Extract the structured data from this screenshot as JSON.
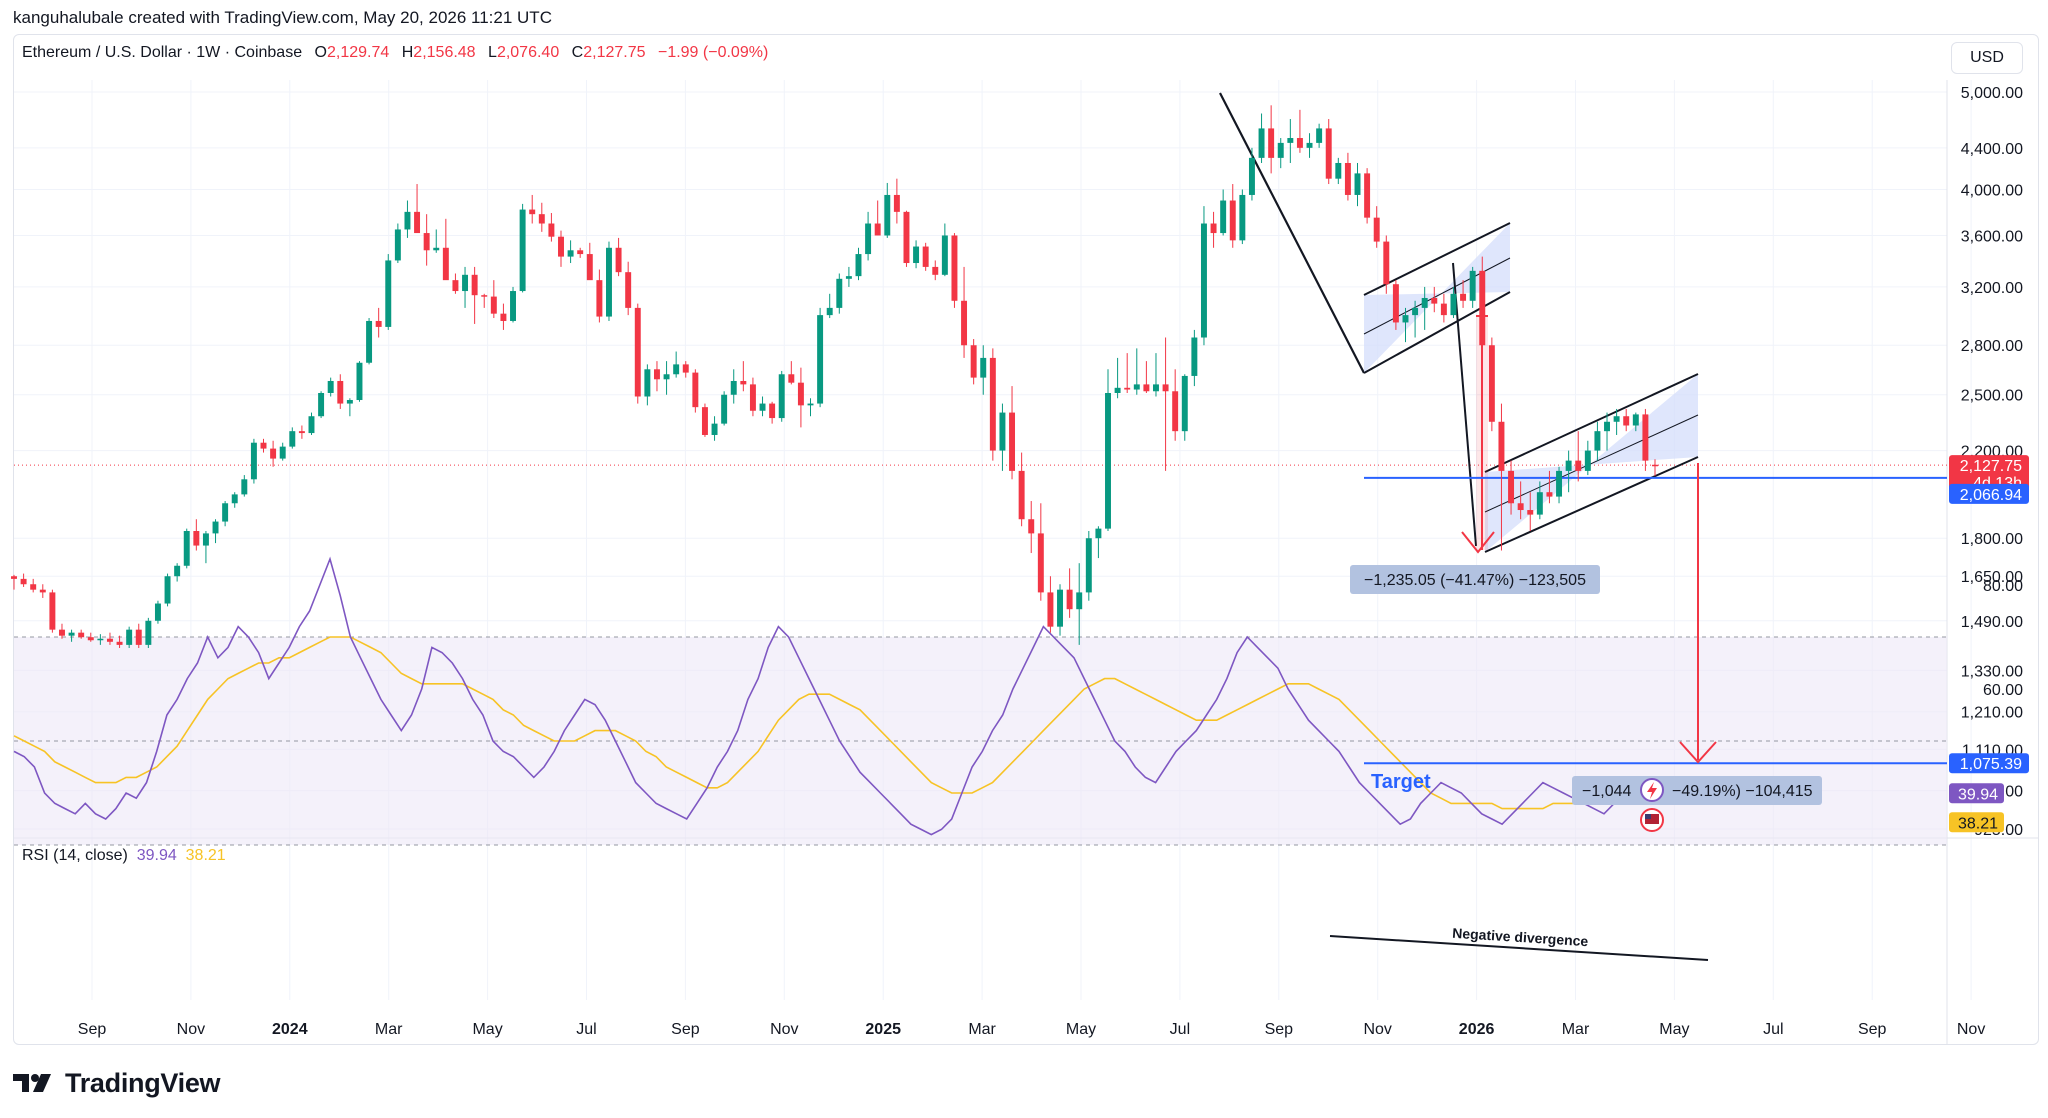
{
  "header": {
    "attribution": "kanguhalubale created with TradingView.com, May 20, 2026 11:21 UTC",
    "symbol": "Ethereum / U.S. Dollar · 1W · Coinbase",
    "open_label": "O",
    "open_value": "2,129.74",
    "high_label": "H",
    "high_value": "2,156.48",
    "low_label": "L",
    "low_value": "2,076.40",
    "close_label": "C",
    "close_value": "2,127.75",
    "change": "−1.99 (−0.09%)",
    "currency_button": "USD"
  },
  "rsi_legend": {
    "name": "RSI (14, close)",
    "rsi_value": "39.94",
    "ma_value": "38.21"
  },
  "branding": {
    "name": "TradingView"
  },
  "annotations": {
    "measure_1": "−1,235.05 (−41.47%) −123,505",
    "measure_2_left": "−1,044",
    "measure_2_right": "−49.19%) −104,415",
    "target_label": "Target",
    "divergence_label": "Negative divergence"
  },
  "price_badges": {
    "last": "2,127.75",
    "countdown": "4d 13h",
    "support": "2,066.94",
    "target": "1,075.39"
  },
  "colors": {
    "up": "#089981",
    "down": "#f23645",
    "level": "#2962ff",
    "rsi": "#7e57c2",
    "rsi_ma": "#f7c325",
    "channel_fill": "#d1dcfb"
  },
  "chart_data": {
    "type": "candlestick",
    "price_axis": {
      "scale": "log",
      "ticks": [
        "5,000.00",
        "4,400.00",
        "4,000.00",
        "3,600.00",
        "3,200.00",
        "2,800.00",
        "2,500.00",
        "2,200.00",
        "1,800.00",
        "1,650.00",
        "1,490.00",
        "1,330.00",
        "1,210.00",
        "1,110.00",
        "1,010.00",
        "925.00"
      ]
    },
    "time_axis": {
      "ticks": [
        "Sep",
        "Nov",
        "2024",
        "Mar",
        "May",
        "Jul",
        "Sep",
        "Nov",
        "2025",
        "Mar",
        "May",
        "Jul",
        "Sep",
        "Nov",
        "2026",
        "Mar",
        "May",
        "Jul",
        "Sep",
        "Nov"
      ]
    },
    "rsi_axis": {
      "ticks": [
        "80.00",
        "60.00"
      ],
      "overbought": 70,
      "oversold": 30,
      "midline": 50
    },
    "levels": {
      "support": 2066.94,
      "target": 1075.39
    },
    "candles_approx": [
      [
        1650,
        1655,
        1600,
        1640
      ],
      [
        1640,
        1660,
        1610,
        1620
      ],
      [
        1620,
        1640,
        1590,
        1600
      ],
      [
        1600,
        1620,
        1570,
        1590
      ],
      [
        1590,
        1600,
        1450,
        1460
      ],
      [
        1460,
        1480,
        1430,
        1440
      ],
      [
        1440,
        1460,
        1420,
        1450
      ],
      [
        1450,
        1460,
        1430,
        1435
      ],
      [
        1435,
        1450,
        1420,
        1425
      ],
      [
        1425,
        1445,
        1410,
        1430
      ],
      [
        1430,
        1450,
        1410,
        1420
      ],
      [
        1420,
        1440,
        1400,
        1410
      ],
      [
        1410,
        1470,
        1400,
        1460
      ],
      [
        1460,
        1480,
        1400,
        1410
      ],
      [
        1410,
        1500,
        1400,
        1490
      ],
      [
        1490,
        1560,
        1480,
        1550
      ],
      [
        1550,
        1660,
        1540,
        1650
      ],
      [
        1650,
        1700,
        1630,
        1690
      ],
      [
        1690,
        1840,
        1680,
        1830
      ],
      [
        1830,
        1880,
        1750,
        1770
      ],
      [
        1770,
        1830,
        1700,
        1820
      ],
      [
        1820,
        1880,
        1780,
        1870
      ],
      [
        1870,
        1960,
        1850,
        1950
      ],
      [
        1950,
        2000,
        1930,
        1990
      ],
      [
        1990,
        2080,
        1980,
        2060
      ],
      [
        2060,
        2260,
        2040,
        2240
      ],
      [
        2240,
        2260,
        2190,
        2210
      ],
      [
        2210,
        2250,
        2120,
        2160
      ],
      [
        2160,
        2240,
        2150,
        2220
      ],
      [
        2220,
        2320,
        2210,
        2300
      ],
      [
        2300,
        2330,
        2260,
        2290
      ],
      [
        2290,
        2400,
        2280,
        2380
      ],
      [
        2380,
        2520,
        2370,
        2510
      ],
      [
        2510,
        2600,
        2490,
        2580
      ],
      [
        2580,
        2620,
        2420,
        2450
      ],
      [
        2450,
        2480,
        2380,
        2470
      ],
      [
        2470,
        2700,
        2460,
        2690
      ],
      [
        2690,
        2980,
        2680,
        2960
      ],
      [
        2960,
        3050,
        2850,
        2920
      ],
      [
        2920,
        3450,
        2900,
        3400
      ],
      [
        3400,
        3700,
        3380,
        3650
      ],
      [
        3650,
        3900,
        3580,
        3800
      ],
      [
        3800,
        4050,
        3700,
        3620
      ],
      [
        3620,
        3780,
        3360,
        3480
      ],
      [
        3480,
        3650,
        3460,
        3500
      ],
      [
        3500,
        3740,
        3450,
        3250
      ],
      [
        3250,
        3300,
        3150,
        3170
      ],
      [
        3170,
        3350,
        3050,
        3290
      ],
      [
        3290,
        3350,
        2940,
        3140
      ],
      [
        3140,
        3150,
        3050,
        3130
      ],
      [
        3130,
        3250,
        2980,
        3010
      ],
      [
        3010,
        3080,
        2900,
        2960
      ],
      [
        2960,
        3200,
        2950,
        3170
      ],
      [
        3170,
        3870,
        3160,
        3820
      ],
      [
        3820,
        3950,
        3700,
        3780
      ],
      [
        3780,
        3880,
        3630,
        3700
      ],
      [
        3700,
        3790,
        3550,
        3590
      ],
      [
        3590,
        3640,
        3350,
        3430
      ],
      [
        3430,
        3560,
        3380,
        3480
      ],
      [
        3480,
        3500,
        3420,
        3450
      ],
      [
        3450,
        3540,
        3300,
        3250
      ],
      [
        3250,
        3330,
        2950,
        2990
      ],
      [
        2990,
        3550,
        2960,
        3500
      ],
      [
        3500,
        3580,
        3280,
        3310
      ],
      [
        3310,
        3390,
        3000,
        3050
      ],
      [
        3050,
        3080,
        2450,
        2490
      ],
      [
        2490,
        2680,
        2440,
        2650
      ],
      [
        2650,
        2700,
        2520,
        2590
      ],
      [
        2590,
        2700,
        2500,
        2620
      ],
      [
        2620,
        2760,
        2600,
        2680
      ],
      [
        2680,
        2700,
        2600,
        2630
      ],
      [
        2630,
        2650,
        2400,
        2430
      ],
      [
        2430,
        2450,
        2270,
        2280
      ],
      [
        2280,
        2380,
        2250,
        2340
      ],
      [
        2340,
        2520,
        2330,
        2500
      ],
      [
        2500,
        2650,
        2450,
        2580
      ],
      [
        2580,
        2700,
        2520,
        2560
      ],
      [
        2560,
        2600,
        2380,
        2410
      ],
      [
        2410,
        2490,
        2380,
        2450
      ],
      [
        2450,
        2460,
        2340,
        2370
      ],
      [
        2370,
        2640,
        2350,
        2620
      ],
      [
        2620,
        2700,
        2560,
        2570
      ],
      [
        2570,
        2660,
        2320,
        2440
      ],
      [
        2440,
        2480,
        2380,
        2450
      ],
      [
        2450,
        3050,
        2430,
        3000
      ],
      [
        3000,
        3150,
        2980,
        3050
      ],
      [
        3050,
        3300,
        3010,
        3260
      ],
      [
        3260,
        3350,
        3200,
        3280
      ],
      [
        3280,
        3500,
        3250,
        3450
      ],
      [
        3450,
        3800,
        3400,
        3700
      ],
      [
        3700,
        3900,
        3600,
        3600
      ],
      [
        3600,
        4060,
        3580,
        3950
      ],
      [
        3950,
        4100,
        3700,
        3800
      ],
      [
        3800,
        3810,
        3350,
        3380
      ],
      [
        3380,
        3560,
        3340,
        3510
      ],
      [
        3510,
        3540,
        3320,
        3350
      ],
      [
        3350,
        3400,
        3250,
        3290
      ],
      [
        3290,
        3700,
        3280,
        3600
      ],
      [
        3600,
        3620,
        3050,
        3100
      ],
      [
        3100,
        3350,
        2720,
        2800
      ],
      [
        2800,
        2840,
        2560,
        2600
      ],
      [
        2600,
        2800,
        2500,
        2720
      ],
      [
        2720,
        2780,
        2150,
        2200
      ],
      [
        2200,
        2450,
        2100,
        2400
      ],
      [
        2400,
        2550,
        2060,
        2100
      ],
      [
        2100,
        2190,
        1850,
        1880
      ],
      [
        1880,
        1960,
        1740,
        1820
      ],
      [
        1820,
        1950,
        1560,
        1590
      ],
      [
        1590,
        1650,
        1450,
        1470
      ],
      [
        1470,
        1620,
        1440,
        1600
      ],
      [
        1600,
        1680,
        1500,
        1530
      ],
      [
        1530,
        1700,
        1410,
        1590
      ],
      [
        1590,
        1830,
        1560,
        1800
      ],
      [
        1800,
        1850,
        1720,
        1840
      ],
      [
        1840,
        2650,
        1830,
        2510
      ],
      [
        2510,
        2720,
        2480,
        2540
      ],
      [
        2540,
        2750,
        2510,
        2530
      ],
      [
        2530,
        2780,
        2500,
        2560
      ],
      [
        2560,
        2700,
        2510,
        2520
      ],
      [
        2520,
        2750,
        2490,
        2560
      ],
      [
        2560,
        2850,
        2100,
        2520
      ],
      [
        2520,
        2650,
        2250,
        2300
      ],
      [
        2300,
        2620,
        2250,
        2610
      ],
      [
        2610,
        2900,
        2550,
        2850
      ],
      [
        2850,
        3850,
        2800,
        3700
      ],
      [
        3700,
        3800,
        3500,
        3620
      ],
      [
        3620,
        4000,
        3600,
        3900
      ],
      [
        3900,
        4050,
        3500,
        3560
      ],
      [
        3560,
        4000,
        3530,
        3950
      ],
      [
        3950,
        4400,
        3900,
        4300
      ],
      [
        4300,
        4760,
        4250,
        4600
      ],
      [
        4600,
        4850,
        4150,
        4300
      ],
      [
        4300,
        4500,
        4200,
        4450
      ],
      [
        4450,
        4700,
        4250,
        4500
      ],
      [
        4500,
        4800,
        4350,
        4400
      ],
      [
        4400,
        4550,
        4300,
        4450
      ],
      [
        4450,
        4650,
        4400,
        4600
      ],
      [
        4600,
        4700,
        4050,
        4100
      ],
      [
        4100,
        4300,
        4050,
        4250
      ],
      [
        4250,
        4350,
        3900,
        3950
      ],
      [
        3950,
        4250,
        3850,
        4150
      ],
      [
        4150,
        4200,
        3700,
        3750
      ],
      [
        3750,
        3850,
        3500,
        3550
      ],
      [
        3550,
        3600,
        3150,
        3220
      ],
      [
        3220,
        3250,
        2900,
        2950
      ],
      [
        2950,
        3050,
        2820,
        3000
      ],
      [
        3000,
        3100,
        2850,
        3050
      ],
      [
        3050,
        3200,
        2900,
        3120
      ],
      [
        3120,
        3200,
        3020,
        3080
      ],
      [
        3080,
        3150,
        2950,
        3000
      ],
      [
        3000,
        3200,
        2980,
        3150
      ],
      [
        3150,
        3250,
        3050,
        3100
      ],
      [
        3100,
        3350,
        3050,
        3320
      ],
      [
        3320,
        3430,
        2750,
        2800
      ],
      [
        2800,
        2850,
        2300,
        2350
      ],
      [
        2350,
        2450,
        1750,
        2100
      ],
      [
        2100,
        2150,
        1900,
        1950
      ],
      [
        1950,
        2050,
        1880,
        1920
      ],
      [
        1920,
        2000,
        1830,
        1900
      ],
      [
        1900,
        2050,
        1880,
        2000
      ],
      [
        2000,
        2100,
        1950,
        1980
      ],
      [
        1980,
        2120,
        1950,
        2100
      ],
      [
        2100,
        2200,
        2000,
        2150
      ],
      [
        2150,
        2300,
        2050,
        2100
      ],
      [
        2100,
        2250,
        2080,
        2200
      ],
      [
        2200,
        2350,
        2150,
        2300
      ],
      [
        2300,
        2400,
        2200,
        2350
      ],
      [
        2350,
        2420,
        2280,
        2380
      ],
      [
        2380,
        2420,
        2300,
        2330
      ],
      [
        2330,
        2400,
        2300,
        2390
      ],
      [
        2390,
        2420,
        2100,
        2150
      ],
      [
        2129.74,
        2156.48,
        2076.4,
        2127.75
      ]
    ],
    "rsi_approx": [
      48,
      47,
      45,
      40,
      38,
      37,
      36,
      38,
      36,
      35,
      37,
      40,
      39,
      42,
      48,
      55,
      58,
      62,
      65,
      70,
      66,
      68,
      72,
      70,
      67,
      62,
      65,
      68,
      72,
      75,
      80,
      85,
      78,
      70,
      66,
      62,
      58,
      55,
      52,
      55,
      60,
      68,
      67,
      65,
      62,
      58,
      55,
      50,
      48,
      47,
      45,
      43,
      45,
      48,
      52,
      55,
      58,
      57,
      54,
      50,
      46,
      42,
      40,
      38,
      37,
      36,
      35,
      38,
      41,
      45,
      48,
      52,
      58,
      62,
      68,
      72,
      70,
      66,
      62,
      58,
      54,
      50,
      47,
      44,
      42,
      40,
      38,
      36,
      34,
      33,
      32,
      33,
      35,
      40,
      45,
      48,
      52,
      55,
      60,
      64,
      68,
      72,
      70,
      68,
      66,
      62,
      58,
      54,
      50,
      48,
      45,
      43,
      42,
      45,
      48,
      50,
      52,
      55,
      58,
      62,
      67,
      70,
      68,
      66,
      64,
      60,
      57,
      54,
      52,
      50,
      48,
      45,
      42,
      40,
      38,
      36,
      34,
      35,
      38,
      40,
      42,
      41,
      40,
      38,
      36,
      35,
      34,
      36,
      38,
      40,
      42,
      41,
      40,
      39,
      38,
      37,
      36,
      38,
      40,
      42,
      40,
      39.94
    ],
    "rsi_ma_approx": [
      51,
      50,
      49,
      48,
      46,
      45,
      44,
      43,
      42,
      42,
      42,
      43,
      43,
      44,
      45,
      47,
      49,
      52,
      55,
      58,
      60,
      62,
      63,
      64,
      65,
      65,
      66,
      66,
      67,
      68,
      69,
      70,
      70,
      70,
      69,
      68,
      67,
      65,
      63,
      62,
      61,
      61,
      61,
      61,
      61,
      60,
      59,
      58,
      56,
      55,
      53,
      52,
      51,
      50,
      50,
      50,
      51,
      52,
      52,
      52,
      51,
      50,
      48,
      47,
      45,
      44,
      43,
      42,
      41,
      41,
      42,
      44,
      46,
      48,
      51,
      54,
      56,
      58,
      59,
      59,
      59,
      58,
      57,
      56,
      54,
      52,
      50,
      48,
      46,
      44,
      42,
      41,
      40,
      40,
      40,
      41,
      42,
      44,
      46,
      48,
      50,
      52,
      54,
      56,
      58,
      60,
      61,
      62,
      62,
      61,
      60,
      59,
      58,
      57,
      56,
      55,
      54,
      54,
      54,
      55,
      56,
      57,
      58,
      59,
      60,
      61,
      61,
      61,
      60,
      59,
      58,
      56,
      54,
      52,
      50,
      48,
      46,
      44,
      42,
      40,
      39,
      38,
      38,
      38,
      38,
      38,
      37,
      37,
      37,
      37,
      37,
      38,
      38,
      38,
      38,
      38,
      38,
      38,
      38,
      38,
      38,
      38.21
    ]
  }
}
